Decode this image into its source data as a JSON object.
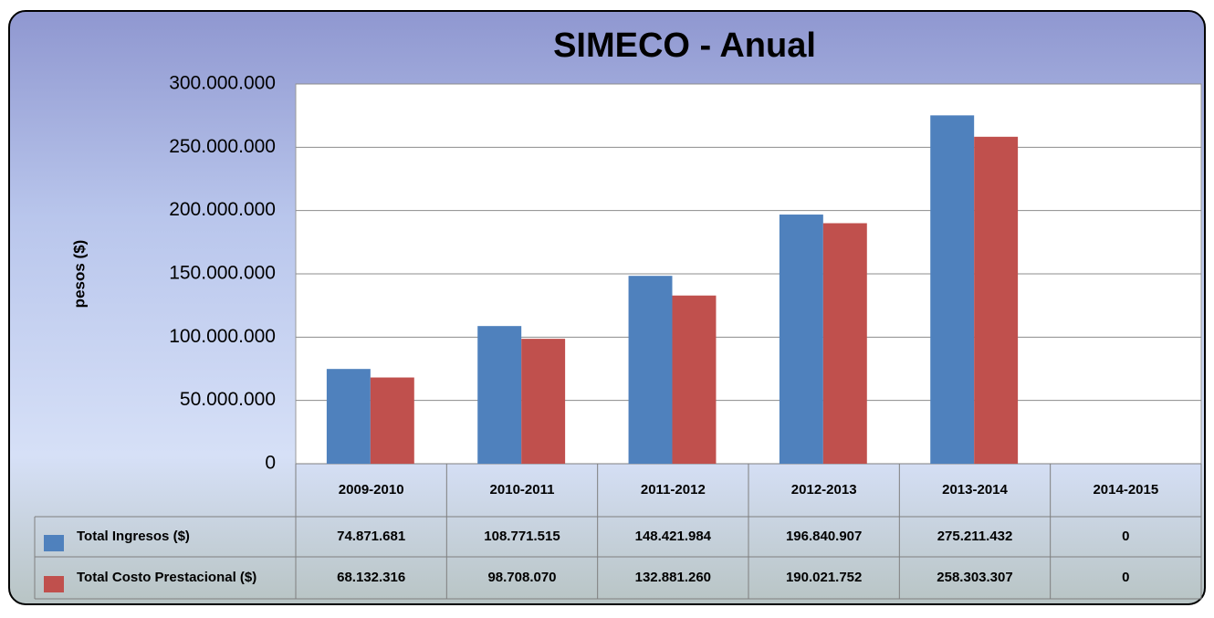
{
  "chart_data": {
    "type": "bar",
    "title": "SIMECO - Anual",
    "y_label": "pesos ($)",
    "categories": [
      "2009-2010",
      "2010-2011",
      "2011-2012",
      "2012-2013",
      "2013-2014",
      "2014-2015"
    ],
    "series": [
      {
        "name": "Total Ingresos ($)",
        "color": "#4f81bd",
        "values": [
          74871681,
          108771515,
          148421984,
          196840907,
          275211432,
          0
        ],
        "value_labels": [
          "74.871.681",
          "108.771.515",
          "148.421.984",
          "196.840.907",
          "275.211.432",
          "0"
        ]
      },
      {
        "name": "Total Costo Prestacional ($)",
        "color": "#c0504d",
        "values": [
          68132316,
          98708070,
          132881260,
          190021752,
          258303307,
          0
        ],
        "value_labels": [
          "68.132.316",
          "98.708.070",
          "132.881.260",
          "190.021.752",
          "258.303.307",
          "0"
        ]
      }
    ],
    "ylim": [
      0,
      300000000
    ],
    "yticks": [
      0,
      {
        "value": 50000000,
        "label": "50.000.000"
      },
      {
        "value": 100000000,
        "label": "100.000.000"
      },
      {
        "value": 150000000,
        "label": "150.000.000"
      },
      {
        "value": 200000000,
        "label": "200.000.000"
      },
      {
        "value": 250000000,
        "label": "250.000.000"
      },
      {
        "value": 300000000,
        "label": "300.000.000"
      }
    ],
    "grid": true
  }
}
